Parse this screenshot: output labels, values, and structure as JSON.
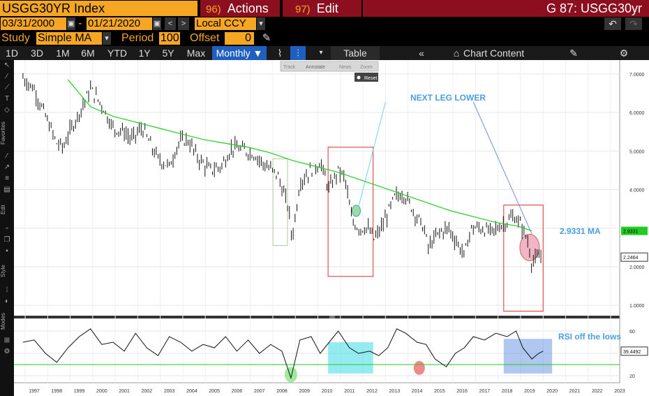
{
  "header": {
    "ticker": "USGG30YR Index",
    "actions_num": "96)",
    "actions_label": "Actions",
    "edit_num": "97)",
    "edit_label": "Edit",
    "gcode": "G 87: USGG30yr"
  },
  "range": {
    "start": "03/31/2000",
    "dash": "-",
    "end": "01/21/2020",
    "currency": "Local CCY"
  },
  "study": {
    "study_label": "Study",
    "study_value": "Simple MA",
    "period_label": "Period",
    "period_value": "100",
    "offset_label": "Offset",
    "offset_value": "0"
  },
  "toolbar": {
    "tabs": [
      "1D",
      "3D",
      "1M",
      "6M",
      "YTD",
      "1Y",
      "5Y",
      "Max"
    ],
    "frequency": "Monthly ▼",
    "table_label": "Table",
    "chart_content_label": "Chart Content"
  },
  "floating": {
    "track": "Track",
    "annotate": "Annotate",
    "news": "News",
    "zoom": "Zoom",
    "reset": "Reset"
  },
  "left_tools": [
    "Favorites",
    "Edit",
    "Style",
    "Modes"
  ],
  "colors": {
    "orange": "#f5a623",
    "menu_red": "#8b0f1f",
    "ma_line": "#22cc22",
    "price_bars": "#111111",
    "annotation_blue": "#4a9fe0"
  },
  "chart_data": {
    "type": "line",
    "title": "",
    "years": [
      "1997",
      "1998",
      "1999",
      "2000",
      "2001",
      "2002",
      "2003",
      "2004",
      "2005",
      "2006",
      "2007",
      "2008",
      "2009",
      "2010",
      "2011",
      "2012",
      "2013",
      "2014",
      "2015",
      "2016",
      "2017",
      "2018",
      "2019",
      "2020",
      "2021",
      "2022",
      "2023"
    ],
    "price_axis": {
      "ticks": [
        "7.0000",
        "6.0000",
        "5.0000",
        "4.0000",
        "3.0000",
        "2.0000",
        "1.0000"
      ],
      "ylim": [
        1.0,
        7.0
      ]
    },
    "rsi_axis": {
      "ticks": [
        "60",
        "40",
        "20"
      ],
      "ylim": [
        15,
        70
      ]
    },
    "price": {
      "x": [
        1997.0,
        1997.5,
        1998.0,
        1998.5,
        1998.8,
        1999.0,
        1999.5,
        2000.0,
        2000.5,
        2001.0,
        2001.5,
        2001.8,
        2002.3,
        2002.8,
        2003.0,
        2003.5,
        2003.9,
        2004.3,
        2004.8,
        2005.3,
        2005.8,
        2006.3,
        2006.9,
        2007.3,
        2007.8,
        2008.3,
        2008.8,
        2008.95,
        2009.3,
        2009.8,
        2010.2,
        2010.6,
        2011.0,
        2011.3,
        2011.6,
        2011.9,
        2012.3,
        2012.6,
        2013.0,
        2013.5,
        2013.9,
        2014.3,
        2014.8,
        2015.0,
        2015.5,
        2015.9,
        2016.3,
        2016.6,
        2016.9,
        2017.3,
        2017.8,
        2018.3,
        2018.8,
        2019.1,
        2019.4,
        2019.6,
        2019.8,
        2020.0
      ],
      "y": [
        6.9,
        6.6,
        5.9,
        5.2,
        5.1,
        5.4,
        6.0,
        6.6,
        6.2,
        5.6,
        5.5,
        5.3,
        5.6,
        5.0,
        4.8,
        4.6,
        5.2,
        5.3,
        4.8,
        4.5,
        4.6,
        5.1,
        5.0,
        4.9,
        4.6,
        4.4,
        3.5,
        2.7,
        4.2,
        4.5,
        4.7,
        4.0,
        4.5,
        4.3,
        3.2,
        3.0,
        3.0,
        2.7,
        3.1,
        3.8,
        3.9,
        3.5,
        3.0,
        2.5,
        2.9,
        3.0,
        2.6,
        2.3,
        3.0,
        3.0,
        2.9,
        3.1,
        3.3,
        3.1,
        2.7,
        2.1,
        2.2,
        2.25
      ],
      "last_label": "2.2464"
    },
    "moving_average": {
      "name": "2.9331 MA",
      "label_value": "2.9331",
      "x": [
        1999.0,
        2000.0,
        2001.0,
        2002.0,
        2003.0,
        2004.0,
        2005.0,
        2006.0,
        2007.0,
        2008.0,
        2009.0,
        2010.0,
        2011.0,
        2012.0,
        2013.0,
        2014.0,
        2015.0,
        2016.0,
        2017.0,
        2018.0,
        2019.0,
        2019.6
      ],
      "y": [
        6.85,
        6.15,
        5.9,
        5.75,
        5.6,
        5.45,
        5.3,
        5.2,
        5.1,
        4.95,
        4.75,
        4.6,
        4.45,
        4.25,
        4.05,
        3.85,
        3.65,
        3.45,
        3.3,
        3.15,
        3.05,
        2.93
      ]
    },
    "rsi": {
      "x": [
        1997.0,
        1997.5,
        1998.0,
        1998.5,
        1999.0,
        1999.5,
        2000.0,
        2000.5,
        2001.0,
        2001.5,
        2002.0,
        2002.5,
        2003.0,
        2003.5,
        2004.0,
        2004.5,
        2005.0,
        2005.5,
        2006.0,
        2006.5,
        2007.0,
        2007.5,
        2008.0,
        2008.5,
        2008.9,
        2009.3,
        2009.8,
        2010.2,
        2010.6,
        2011.0,
        2011.5,
        2011.9,
        2012.4,
        2012.8,
        2013.2,
        2013.6,
        2014.0,
        2014.5,
        2014.9,
        2015.3,
        2015.8,
        2016.2,
        2016.6,
        2017.0,
        2017.5,
        2018.0,
        2018.5,
        2018.9,
        2019.2,
        2019.6,
        2019.9,
        2020.1
      ],
      "y": [
        50,
        52,
        40,
        32,
        45,
        55,
        62,
        48,
        50,
        42,
        58,
        45,
        38,
        55,
        50,
        42,
        48,
        45,
        55,
        42,
        52,
        40,
        48,
        42,
        18,
        52,
        55,
        40,
        50,
        60,
        45,
        40,
        42,
        38,
        45,
        62,
        58,
        50,
        48,
        35,
        28,
        40,
        45,
        55,
        52,
        58,
        55,
        60,
        45,
        35,
        40,
        42
      ],
      "reference": 30,
      "last_label": "39.4492"
    },
    "annotations": [
      {
        "text": "NEXT LEG LOWER"
      },
      {
        "text": "2.9331 MA"
      },
      {
        "text": "RSI off the lows"
      }
    ]
  }
}
